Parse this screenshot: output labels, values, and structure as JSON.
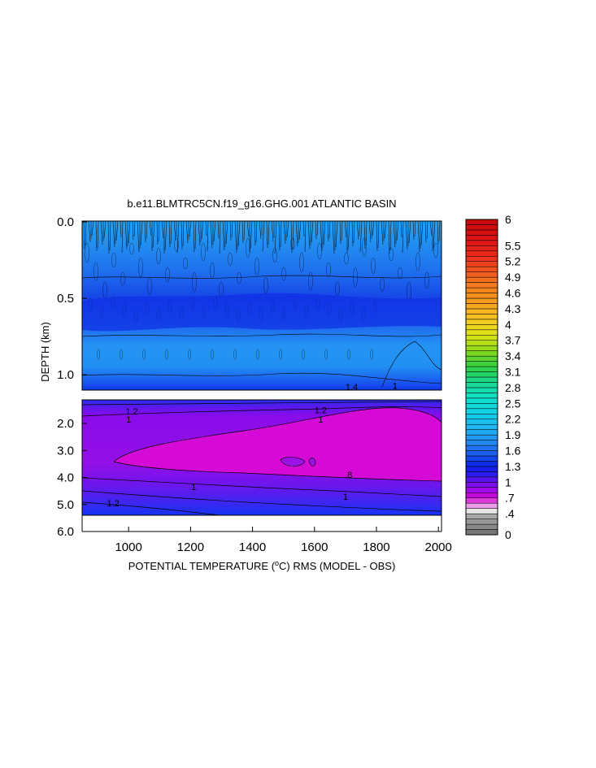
{
  "chart_data": {
    "type": "heatmap",
    "title": "b.e11.BLMTRC5CN.f19_g16.GHG.001 ATLANTIC BASIN",
    "xlabel": "POTENTIAL TEMPERATURE (",
    "xlabel_unit": "o",
    "xlabel_rest": "C) RMS (MODEL - OBS)",
    "ylabel": "DEPTH (km)",
    "xlim": [
      850,
      2010
    ],
    "x_ticks": [
      "1000",
      "1200",
      "1400",
      "1600",
      "1800",
      "2000"
    ],
    "x_tick_values": [
      1000,
      1200,
      1400,
      1600,
      1800,
      2000
    ],
    "upper_panel": {
      "ylim": [
        0.0,
        1.1
      ],
      "y_ticks": [
        "0.0",
        "0.5",
        "1.0"
      ],
      "y_tick_values": [
        0.0,
        0.5,
        1.0
      ]
    },
    "lower_panel": {
      "ylim": [
        1.1,
        6.0
      ],
      "y_ticks": [
        "2.0",
        "3.0",
        "4.0",
        "5.0",
        "6.0"
      ],
      "y_tick_values": [
        2.0,
        3.0,
        4.0,
        5.0,
        6.0
      ]
    },
    "contour_labels": [
      {
        "text": "1.2",
        "x": 1010,
        "depth": 1.55
      },
      {
        "text": "1",
        "x": 1000,
        "depth": 1.85
      },
      {
        "text": "1.2",
        "x": 1620,
        "depth": 1.5
      },
      {
        "text": "1",
        "x": 1620,
        "depth": 1.85
      },
      {
        "text": ".8",
        "x": 1710,
        "depth": 3.9
      },
      {
        "text": "1",
        "x": 1210,
        "depth": 4.35
      },
      {
        "text": "1",
        "x": 1700,
        "depth": 4.7
      },
      {
        "text": "1.2",
        "x": 950,
        "depth": 4.95
      },
      {
        "text": "1.4",
        "x": 1720,
        "depth": 1.08
      },
      {
        "text": "1",
        "x": 1860,
        "depth": 1.07
      }
    ],
    "colorbar": {
      "range": [
        0,
        6
      ],
      "labels": [
        "6",
        "5.5",
        "5.2",
        "4.9",
        "4.6",
        "4.3",
        "4",
        "3.7",
        "3.4",
        "3.1",
        "2.8",
        "2.5",
        "2.2",
        "1.9",
        "1.6",
        "1.3",
        "1",
        ".7",
        ".4",
        "0"
      ],
      "label_values": [
        6,
        5.5,
        5.2,
        4.9,
        4.6,
        4.3,
        4,
        3.7,
        3.4,
        3.1,
        2.8,
        2.5,
        2.2,
        1.9,
        1.6,
        1.3,
        1,
        0.7,
        0.4,
        0
      ]
    },
    "colors": {
      "deep_blue": "#0a1ee6",
      "mid_blue": "#1f63f0",
      "light_blue": "#2196f3",
      "violet": "#8c0aeb",
      "magenta": "#d20ad2",
      "bright_blue": "#1432f5"
    }
  }
}
